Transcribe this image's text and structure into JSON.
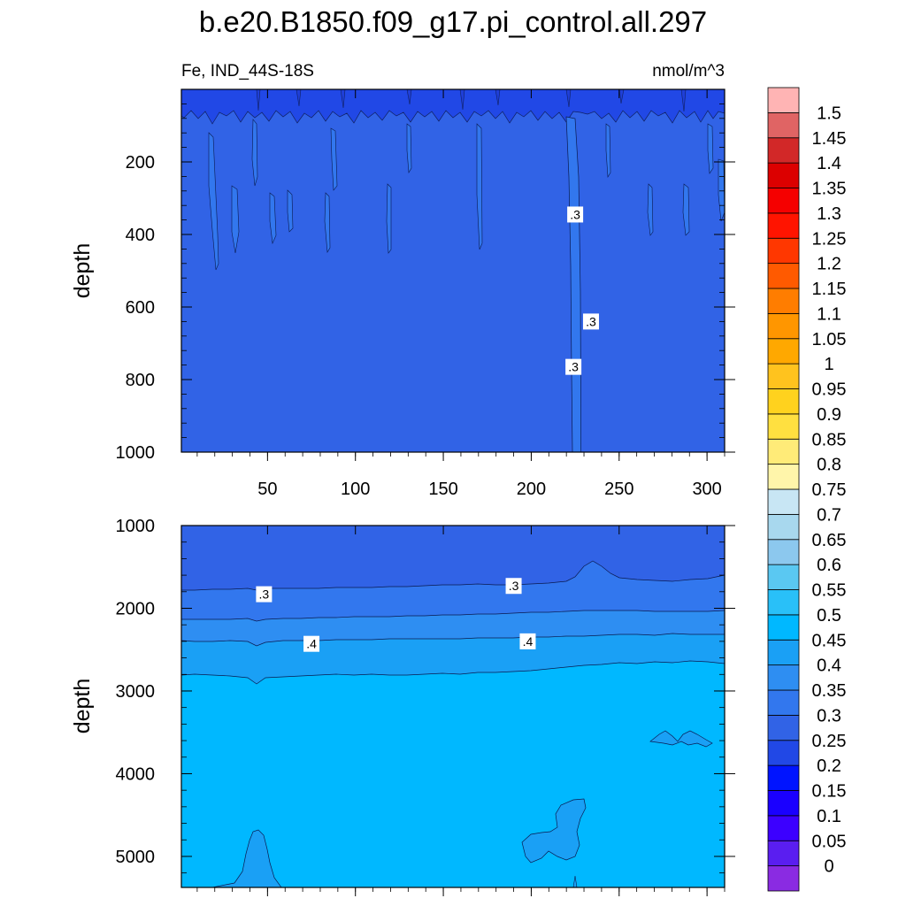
{
  "chart_data": {
    "type": "contour",
    "title": "b.e20.B1850.f09_g17.pi_control.all.297",
    "variable": "Fe, IND_44S-18S",
    "units": "nmol/m^3",
    "colorbar": {
      "levels": [
        "0",
        "0.05",
        "0.1",
        "0.15",
        "0.2",
        "0.25",
        "0.3",
        "0.35",
        "0.4",
        "0.45",
        "0.5",
        "0.55",
        "0.6",
        "0.65",
        "0.7",
        "0.75",
        "0.8",
        "0.85",
        "0.9",
        "0.95",
        "1",
        "1.05",
        "1.1",
        "1.15",
        "1.2",
        "1.25",
        "1.3",
        "1.35",
        "1.4",
        "1.45",
        "1.5"
      ],
      "colors": [
        "#8a2be2",
        "#5a1ef0",
        "#3c00ff",
        "#1a00ff",
        "#0014ff",
        "#2148e6",
        "#3163e6",
        "#3277ee",
        "#2e8ef2",
        "#1aa0f5",
        "#00b8ff",
        "#29c0f8",
        "#5ac8f2",
        "#8cc8ee",
        "#a8d8ee",
        "#c8e6f4",
        "#fff5aa",
        "#ffeb78",
        "#ffe040",
        "#ffd21e",
        "#ffc31e",
        "#ffa800",
        "#ff9600",
        "#ff7d00",
        "#ff5a00",
        "#ff3700",
        "#ff1400",
        "#f50000",
        "#dc0000",
        "#d22828",
        "#e06464",
        "#ffb4b4"
      ]
    },
    "panels": [
      {
        "name": "upper",
        "ylabel": "depth",
        "ylim": [
          0,
          1000
        ],
        "xlim": [
          1,
          310
        ],
        "yticks": [
          200,
          400,
          600,
          800,
          1000
        ],
        "xticks": [
          50,
          100,
          150,
          200,
          250,
          300
        ],
        "contour_labels": [
          {
            "text": ".3",
            "x": 225,
            "y": 345
          },
          {
            "text": ".3",
            "x": 234,
            "y": 640
          },
          {
            "text": ".3",
            "x": 224,
            "y": 765
          }
        ]
      },
      {
        "name": "lower",
        "ylabel": "depth",
        "ylim": [
          1000,
          5375
        ],
        "xlim": [
          1,
          310
        ],
        "yticks": [
          1000,
          2000,
          3000,
          4000,
          5000
        ],
        "xticks": [],
        "contour_labels": [
          {
            "text": ".3",
            "x": 48,
            "y": 1830
          },
          {
            "text": ".3",
            "x": 190,
            "y": 1730
          },
          {
            "text": ".4",
            "x": 75,
            "y": 2430
          },
          {
            "text": ".4",
            "x": 198,
            "y": 2400
          }
        ]
      }
    ]
  }
}
